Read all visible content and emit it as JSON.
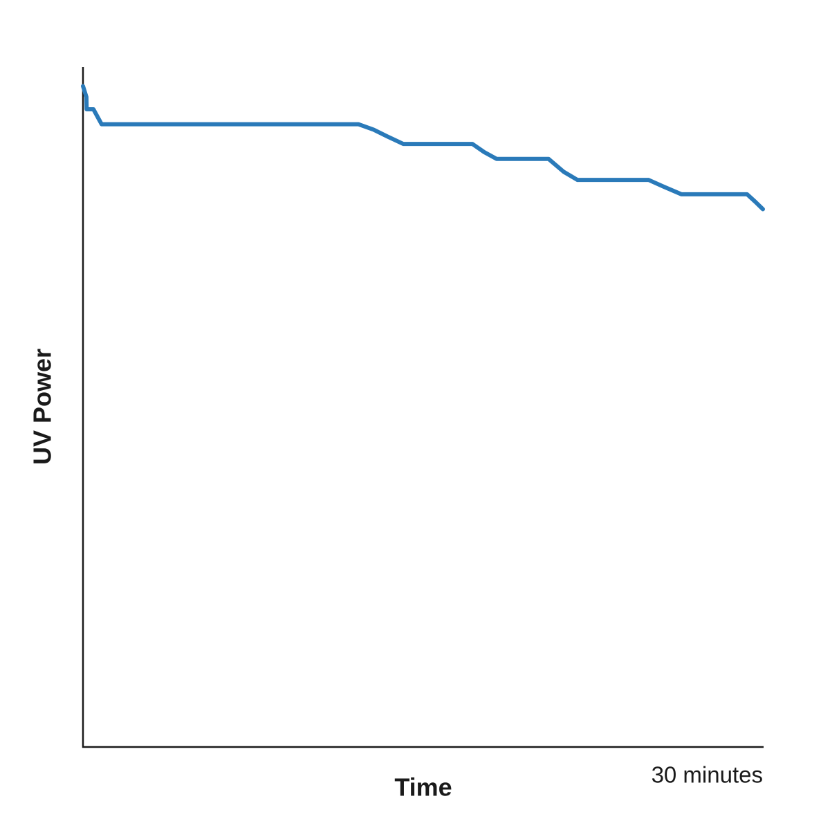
{
  "chart_data": {
    "type": "line",
    "x_label": "Time",
    "y_label": "UV Power",
    "x": [
      0,
      0.15,
      0.16,
      0.46,
      0.82,
      12.15,
      12.82,
      13.43,
      14.13,
      17.18,
      17.7,
      18.25,
      20.54,
      21.21,
      21.82,
      24.96,
      25.63,
      26.4,
      29.3,
      29.66,
      30
    ],
    "values": [
      97.2,
      95.6,
      93.8,
      93.8,
      91.6,
      91.6,
      90.8,
      89.8,
      88.7,
      88.7,
      87.5,
      86.5,
      86.5,
      84.6,
      83.4,
      83.4,
      82.4,
      81.3,
      81.3,
      80.2,
      79.1
    ],
    "color": "#2a7ab9",
    "xlim": [
      0,
      30
    ],
    "ylim": [
      0,
      100
    ],
    "xticks": [
      {
        "value": 30,
        "label": "30 minutes"
      }
    ]
  }
}
